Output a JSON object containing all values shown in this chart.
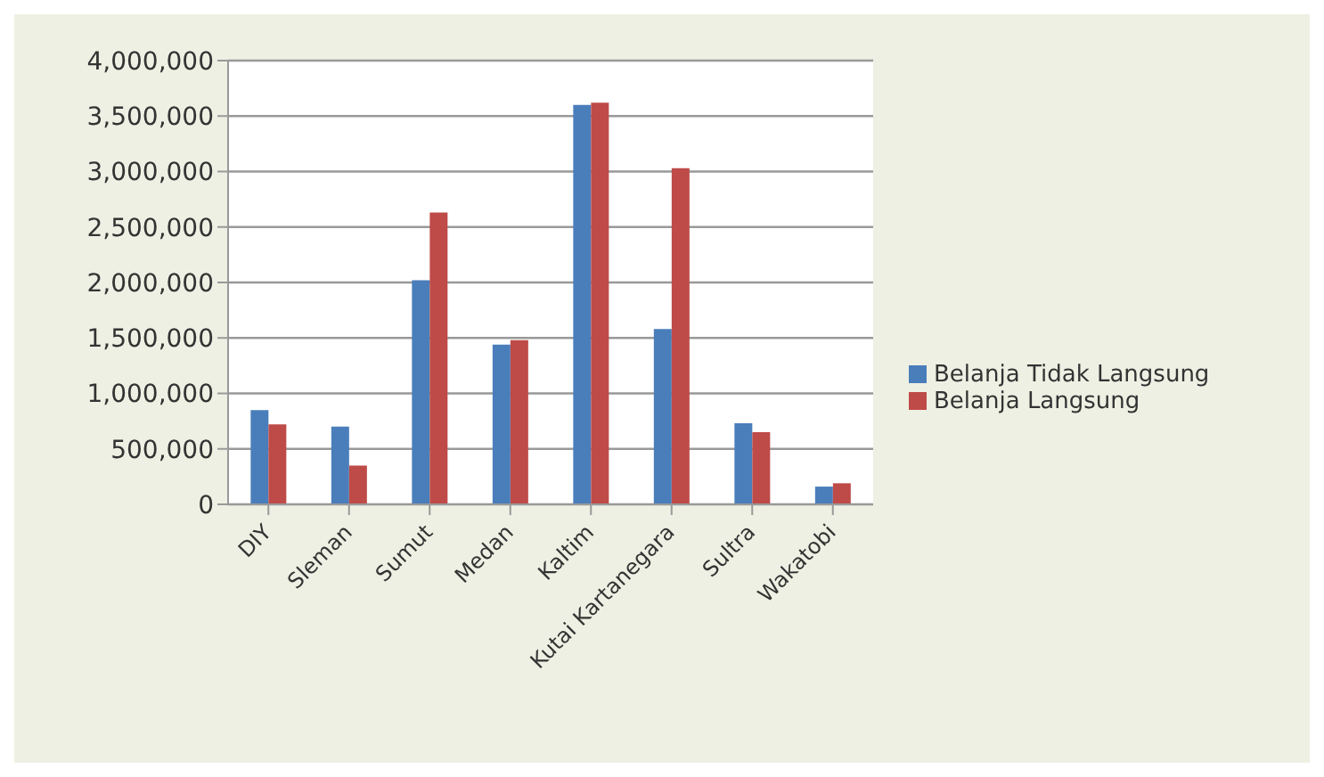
{
  "chart_data": {
    "type": "bar",
    "categories": [
      "DIY",
      "Sleman",
      "Sumut",
      "Medan",
      "Kaltim",
      "Kutai Kartanegara",
      "Sultra",
      "Wakatobi"
    ],
    "series": [
      {
        "name": "Belanja Tidak Langsung",
        "color": "#4a7ebb",
        "values": [
          850000,
          700000,
          2020000,
          1440000,
          3600000,
          1580000,
          730000,
          160000
        ]
      },
      {
        "name": "Belanja Langsung",
        "color": "#be4b48",
        "values": [
          720000,
          350000,
          2630000,
          1480000,
          3620000,
          3030000,
          650000,
          190000
        ]
      }
    ],
    "ylim": [
      0,
      4000000
    ],
    "yticks": [
      0,
      {
        "value": 500000,
        "label": "500,000"
      },
      {
        "value": 1000000,
        "label": "1,000,000"
      },
      {
        "value": 1500000,
        "label": "1,500,000"
      },
      {
        "value": 2000000,
        "label": "2,000,000"
      },
      {
        "value": 2500000,
        "label": "2,500,000"
      },
      {
        "value": 3000000,
        "label": "3,000,000"
      },
      {
        "value": 3500000,
        "label": "3,500,000"
      },
      {
        "value": 4000000,
        "label": "4,000,000"
      }
    ],
    "grid": "y",
    "legend": "right"
  }
}
